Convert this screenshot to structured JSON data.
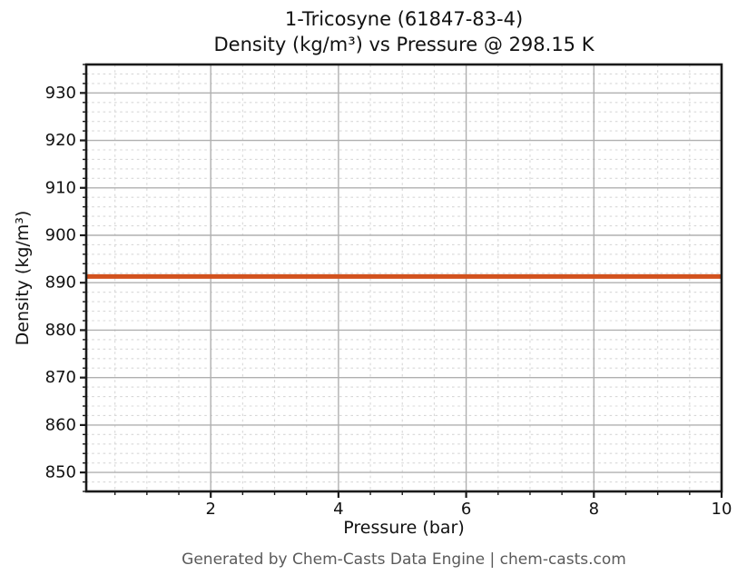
{
  "chart_data": {
    "type": "line",
    "title_lines": [
      "1-Tricosyne (61847-83-4)",
      "Density (kg/m³) vs Pressure @ 298.15 K"
    ],
    "xlabel": "Pressure (bar)",
    "ylabel": "Density (kg/m³)",
    "footer": "Generated by Chem-Casts Data Engine | chem-casts.com",
    "xlim": [
      0.05,
      10
    ],
    "ylim": [
      846,
      936
    ],
    "x_major_ticks": [
      2,
      4,
      6,
      8,
      10
    ],
    "y_major_ticks": [
      850,
      860,
      870,
      880,
      890,
      900,
      910,
      920,
      930
    ],
    "x_minor_step": 0.5,
    "y_minor_step": 2,
    "grid": {
      "major": true,
      "minor": true
    },
    "legend": "none",
    "series": [
      {
        "name": "Density",
        "color": "#d2521e",
        "linewidth": 5,
        "x": [
          0.05,
          10
        ],
        "y": [
          891.3,
          891.3
        ]
      }
    ]
  },
  "style": {
    "background": "#ffffff",
    "spine_color": "#1a1a1a",
    "major_grid_color": "#b0b0b0",
    "minor_grid_color": "#d8d8d8",
    "tick_color": "#1a1a1a",
    "text_color": "#111111",
    "footer_color": "#5a5a5a"
  }
}
